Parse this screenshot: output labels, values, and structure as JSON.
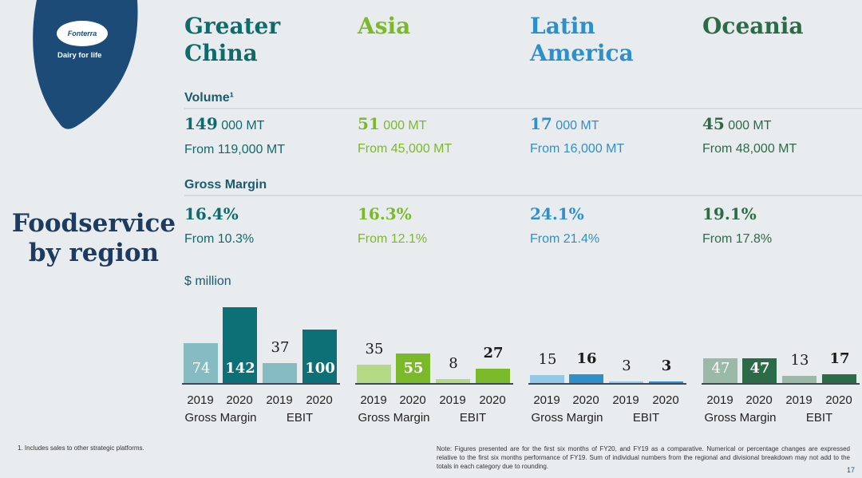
{
  "logo": {
    "brand": "Fonterra",
    "tagline": "Dairy for life"
  },
  "title": "Foodservice by region",
  "sections": {
    "volume": "Volume¹",
    "gross_margin": "Gross Margin",
    "unit": "$ million"
  },
  "regions": [
    {
      "name": "Greater China",
      "color": "#0f6b6b",
      "vol_num": "149",
      "vol_rest": " 000 MT",
      "vol_from": "From 119,000 MT",
      "gm": "16.4%",
      "gm_from": "From 10.3%"
    },
    {
      "name": "Asia",
      "color": "#7ab929",
      "vol_num": "51",
      "vol_rest": " 000 MT",
      "vol_from": "From 45,000 MT",
      "gm": "16.3%",
      "gm_from": "From 12.1%"
    },
    {
      "name": "Latin America",
      "color": "#2f8fc8",
      "vol_num": "17",
      "vol_rest": " 000 MT",
      "vol_from": "From 16,000 MT",
      "gm": "24.1%",
      "gm_from": "From 21.4%"
    },
    {
      "name": "Oceania",
      "color": "#2c6b48",
      "vol_num": "45",
      "vol_rest": " 000 MT",
      "vol_from": "From 48,000 MT",
      "gm": "19.1%",
      "gm_from": "From 17.8%"
    }
  ],
  "chart_data": {
    "type": "bar",
    "ylabel": "$ million",
    "categories": [
      "2019",
      "2020",
      "2019",
      "2020"
    ],
    "groups": [
      "Gross Margin",
      "EBIT"
    ],
    "series": [
      {
        "name": "Greater China",
        "values": [
          74,
          142,
          37,
          100
        ],
        "labels": [
          "74",
          "142",
          "37",
          "100"
        ],
        "colors": [
          "#84bcc2",
          "#0c7076",
          "#84bcc2",
          "#0c7076"
        ]
      },
      {
        "name": "Asia",
        "values": [
          35,
          55,
          8,
          27
        ],
        "labels": [
          "35",
          "55",
          "8",
          "27"
        ],
        "colors": [
          "#b4da86",
          "#7ab929",
          "#b4da86",
          "#7ab929"
        ]
      },
      {
        "name": "Latin America",
        "values": [
          15,
          16,
          3,
          3
        ],
        "labels": [
          "15",
          "16",
          "3",
          "3"
        ],
        "colors": [
          "#95c7e6",
          "#2f8fc8",
          "#95c7e6",
          "#2f8fc8"
        ]
      },
      {
        "name": "Oceania",
        "values": [
          47,
          47,
          13,
          17
        ],
        "labels": [
          "47",
          "47",
          "13",
          "17"
        ],
        "colors": [
          "#9ab9a6",
          "#2c6b48",
          "#9ab9a6",
          "#2c6b48"
        ]
      }
    ]
  },
  "footnote": "1.      Includes sales to other strategic platforms.",
  "note": "Note: Figures presented are for the first six months of FY20, and FY19 as a comparative. Numerical or percentage changes are expressed relative to the first six months performance of FY19. Sum of individual numbers from the regional and divisional breakdown may not add to the totals in each category due to rounding.",
  "page_number": "17",
  "colors": {
    "navy": "#1d3a5f",
    "teal_label": "#1a5b6e",
    "background": "#e9ecee"
  }
}
